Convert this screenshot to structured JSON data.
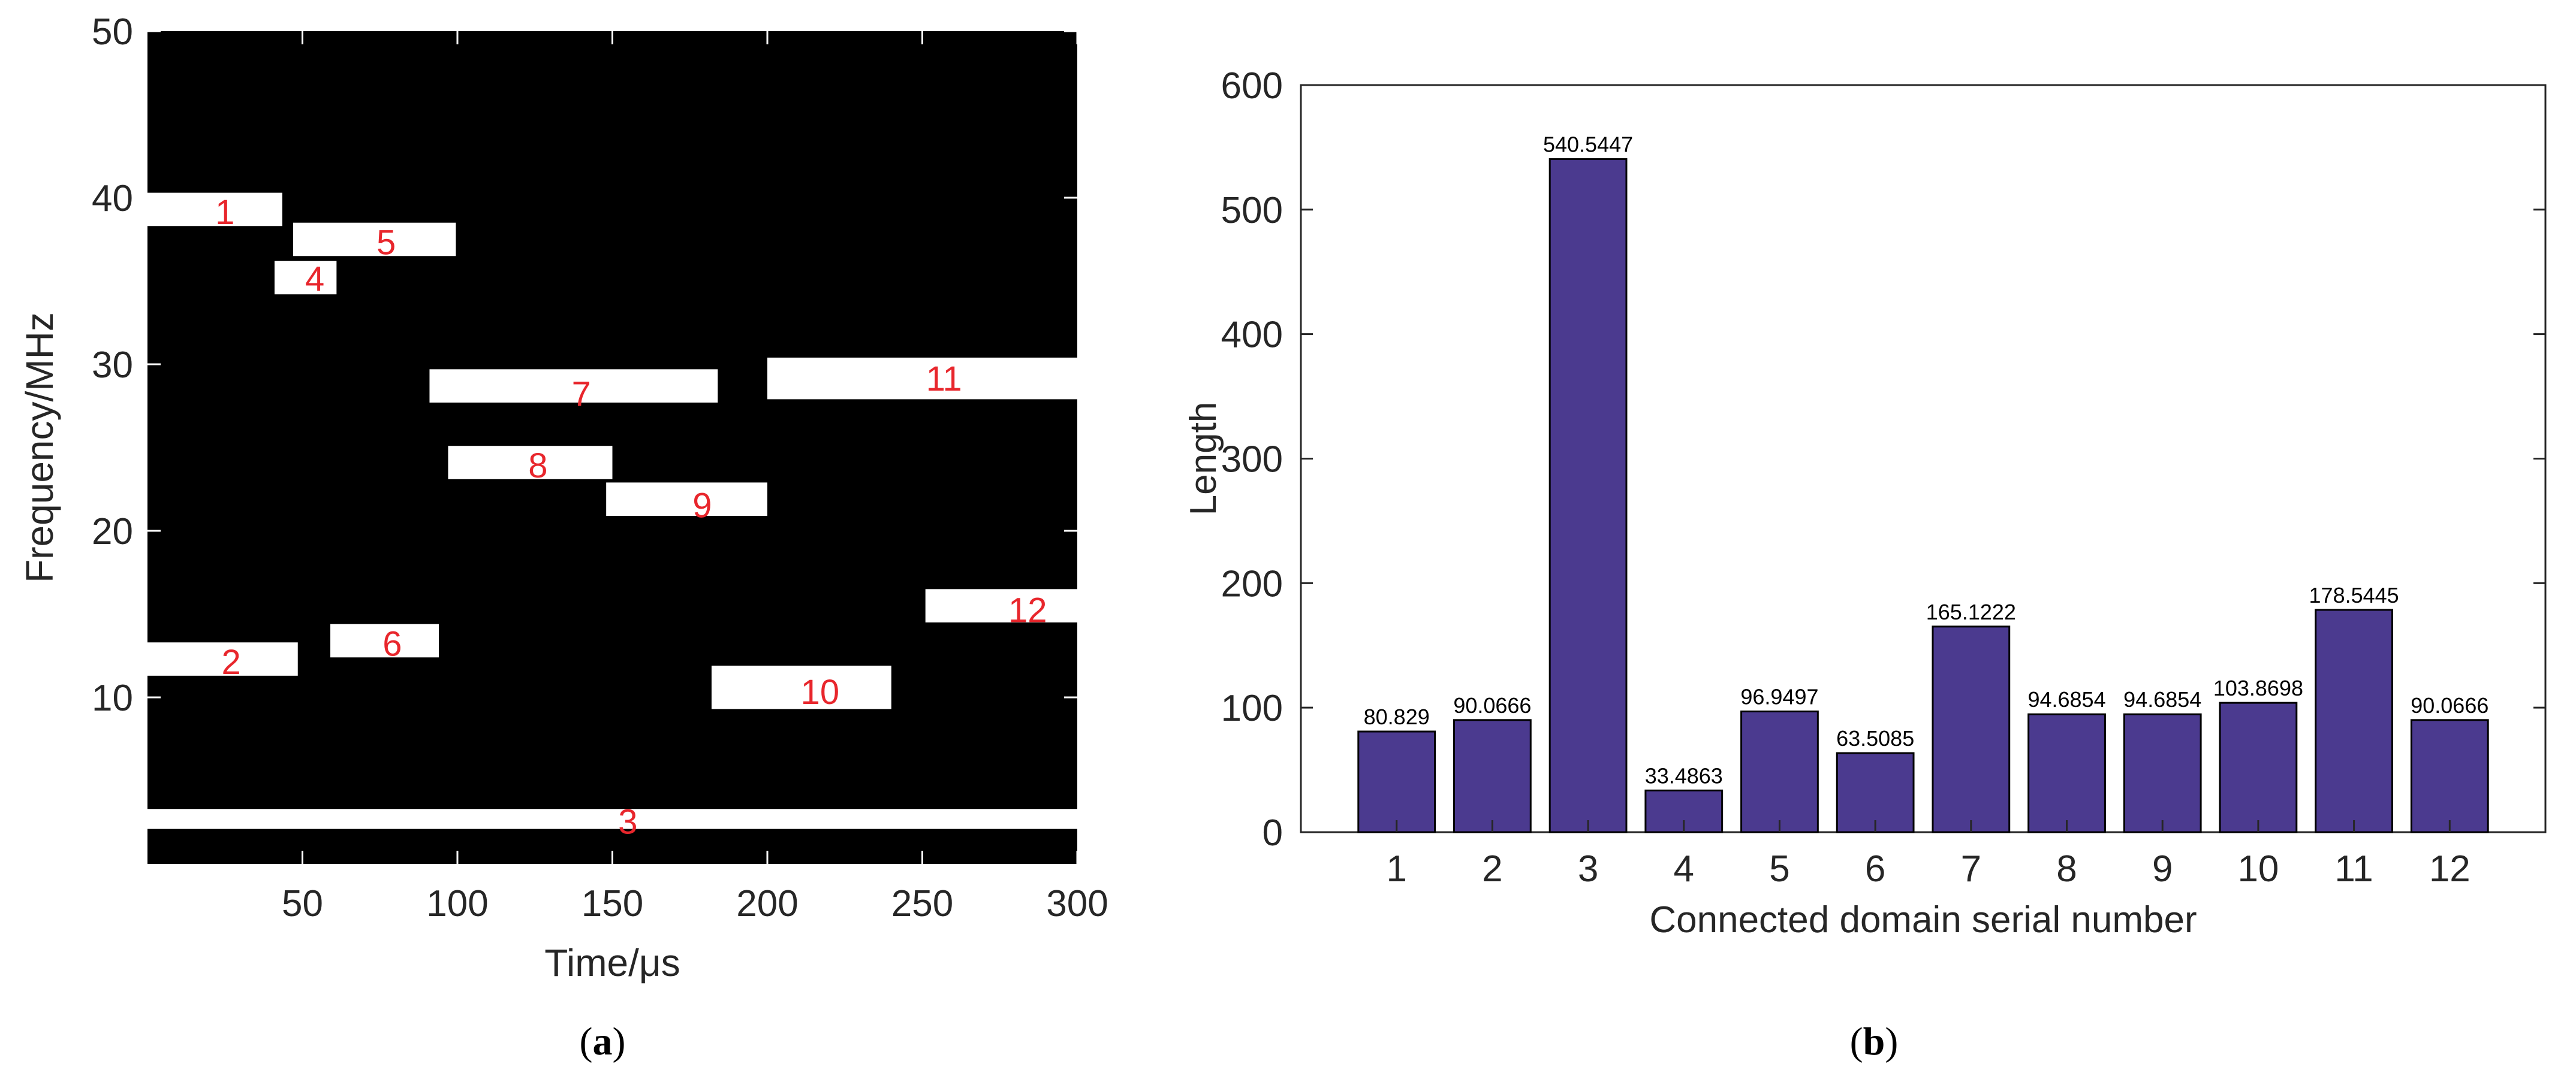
{
  "chart_data": [
    {
      "panel": "(a)",
      "type": "heatmap",
      "xlabel": "Time/μs",
      "ylabel": "Frequency/MHz",
      "xlim": [
        0,
        300
      ],
      "ylim": [
        0,
        50
      ],
      "xticks": [
        50,
        100,
        150,
        200,
        250,
        300
      ],
      "yticks": [
        10,
        20,
        30,
        40,
        50
      ],
      "background_color": "#000000",
      "region_color": "#ffffff",
      "label_color": "#e8262c",
      "regions": [
        {
          "label": "1",
          "t_start": 0,
          "t_end": 43.5,
          "f_low": 38.3,
          "f_high": 40.3,
          "label_t": 25,
          "label_f": 39.2
        },
        {
          "label": "2",
          "t_start": 0,
          "t_end": 48.5,
          "f_low": 11.3,
          "f_high": 13.3,
          "label_t": 27,
          "label_f": 12.2
        },
        {
          "label": "3",
          "t_start": 0,
          "t_end": 300,
          "f_low": 2.1,
          "f_high": 3.3,
          "label_t": 155,
          "label_f": 2.6
        },
        {
          "label": "4",
          "t_start": 41,
          "t_end": 61,
          "f_low": 34.2,
          "f_high": 36.2,
          "label_t": 54,
          "label_f": 35.2
        },
        {
          "label": "5",
          "t_start": 47,
          "t_end": 99.5,
          "f_low": 36.5,
          "f_high": 38.5,
          "label_t": 77,
          "label_f": 37.4
        },
        {
          "label": "6",
          "t_start": 59,
          "t_end": 94,
          "f_low": 12.4,
          "f_high": 14.4,
          "label_t": 79,
          "label_f": 13.3
        },
        {
          "label": "7",
          "t_start": 91,
          "t_end": 184,
          "f_low": 27.7,
          "f_high": 29.7,
          "label_t": 140,
          "label_f": 28.3
        },
        {
          "label": "8",
          "t_start": 97,
          "t_end": 150,
          "f_low": 23.1,
          "f_high": 25.1,
          "label_t": 126,
          "label_f": 24.0
        },
        {
          "label": "9",
          "t_start": 148,
          "t_end": 200,
          "f_low": 20.9,
          "f_high": 22.9,
          "label_t": 179,
          "label_f": 21.6
        },
        {
          "label": "10",
          "t_start": 182,
          "t_end": 240,
          "f_low": 9.3,
          "f_high": 11.9,
          "label_t": 217,
          "label_f": 10.4
        },
        {
          "label": "11",
          "t_start": 200,
          "t_end": 300,
          "f_low": 27.9,
          "f_high": 30.4,
          "label_t": 257,
          "label_f": 29.2
        },
        {
          "label": "12",
          "t_start": 251,
          "t_end": 300,
          "f_low": 14.5,
          "f_high": 16.5,
          "label_t": 284,
          "label_f": 15.3
        }
      ]
    },
    {
      "panel": "(b)",
      "type": "bar",
      "xlabel": "Connected domain serial number",
      "ylabel": "Length",
      "categories": [
        "1",
        "2",
        "3",
        "4",
        "5",
        "6",
        "7",
        "8",
        "9",
        "10",
        "11",
        "12"
      ],
      "values": [
        80.829,
        90.0666,
        540.5447,
        33.4863,
        96.9497,
        63.5085,
        165.1222,
        94.6854,
        94.6854,
        103.8698,
        178.5445,
        90.0666
      ],
      "value_labels": [
        "80.829",
        "90.0666",
        "540.5447",
        "33.4863",
        "96.9497",
        "63.5085",
        "165.1222",
        "94.6854",
        "94.6854",
        "103.8698",
        "178.5445",
        "90.0666"
      ],
      "ylim": [
        0,
        600
      ],
      "yticks": [
        0,
        100,
        200,
        300,
        400,
        500,
        600
      ],
      "bar_color": "#4b3a8f"
    }
  ],
  "captions": {
    "a": {
      "open": "(",
      "letter": "a",
      "close": ")"
    },
    "b": {
      "open": "(",
      "letter": "b",
      "close": ")"
    }
  }
}
